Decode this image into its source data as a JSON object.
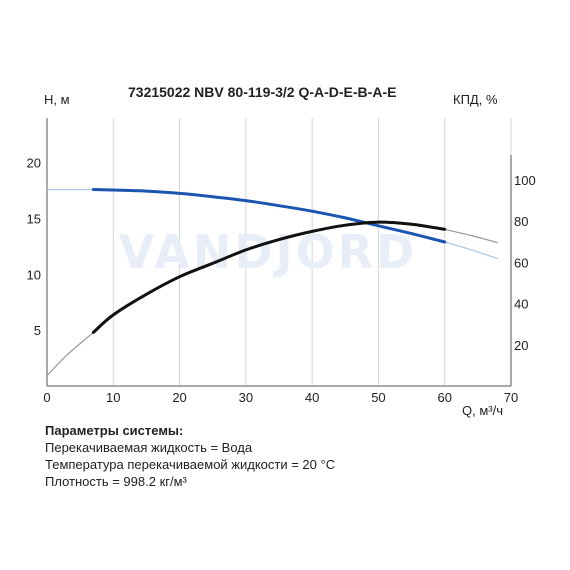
{
  "chart_data": {
    "type": "line",
    "title": "73215022 NBV 80-119-3/2 Q-A-D-E-B-A-E",
    "ylabel_left": "H, м",
    "ylabel_right": "КПД, %",
    "xlabel": "Q, м³/ч",
    "xlim": [
      0,
      70
    ],
    "ylim_left": [
      0,
      24
    ],
    "ylim_right": [
      0,
      130
    ],
    "x_ticks": [
      "0",
      "10",
      "20",
      "30",
      "40",
      "50",
      "60",
      "70"
    ],
    "y_ticks_left": [
      "5",
      "10",
      "15",
      "20"
    ],
    "y_ticks_right": [
      "20",
      "40",
      "60",
      "80",
      "100"
    ],
    "grid": "vertical",
    "watermark": "VANDJORD",
    "series": [
      {
        "axis": "left",
        "color": "#1a56b0",
        "extension_color": "#a9c6e8",
        "x": [
          7,
          10,
          15,
          20,
          25,
          30,
          35,
          40,
          45,
          50,
          55,
          60
        ],
        "y": [
          17.6,
          17.55,
          17.45,
          17.25,
          16.95,
          16.6,
          16.15,
          15.65,
          15.05,
          14.35,
          13.65,
          12.9
        ],
        "ext_before": {
          "x": [
            0,
            7
          ],
          "y": [
            17.6,
            17.6
          ]
        },
        "ext_after": {
          "x": [
            60,
            64,
            68
          ],
          "y": [
            12.9,
            12.2,
            11.4
          ]
        }
      },
      {
        "axis": "right",
        "color": "#111111",
        "extension_color": "#999999",
        "x": [
          7,
          10,
          15,
          20,
          25,
          30,
          35,
          40,
          45,
          50,
          55,
          60
        ],
        "y": [
          26,
          34.5,
          44.5,
          53,
          59.5,
          66,
          71,
          75,
          78,
          79.5,
          78.5,
          76
        ],
        "ext_before": {
          "x": [
            0,
            3,
            7
          ],
          "y": [
            5,
            15,
            26
          ]
        },
        "ext_after": {
          "x": [
            60,
            64,
            68
          ],
          "y": [
            76,
            73,
            69.5
          ]
        }
      }
    ]
  },
  "params": {
    "heading": "Параметры системы:",
    "lines": [
      "Перекачиваемая жидкость = Вода",
      "Температура перекачиваемой жидкости = 20 °C",
      "Плотность = 998.2 кг/м³"
    ]
  }
}
